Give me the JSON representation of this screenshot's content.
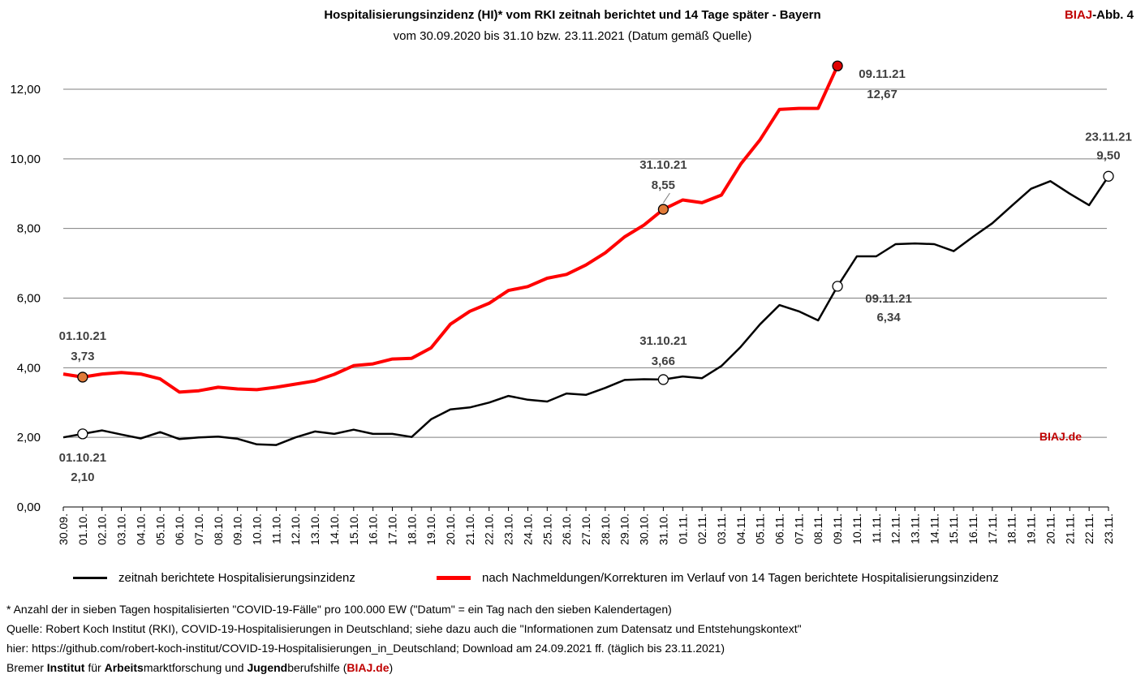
{
  "header": {
    "title": "Hospitalisierungsinzidenz (HI)* vom RKI zeitnah berichtet und 14 Tage später - Bayern",
    "subtitle": "vom 30.09.2020 bis 31.10 bzw. 23.11.2021 (Datum gemäß Quelle)",
    "fig_label_red": "BIAJ",
    "fig_label_rest": "-Abb. 4"
  },
  "colors": {
    "black_series": "#000000",
    "red_series": "#ff0000",
    "gridline": "#7f7f7f",
    "brand_red": "#c00000",
    "marker_orange": "#e07b39",
    "marker_red": "#e00000"
  },
  "chart_data": {
    "type": "line",
    "ylim": [
      0,
      12
    ],
    "yticks": [
      "0,00",
      "2,00",
      "4,00",
      "6,00",
      "8,00",
      "10,00",
      "12,00"
    ],
    "ytick_values": [
      0,
      2,
      4,
      6,
      8,
      10,
      12
    ],
    "categories": [
      "30.09.",
      "01.10.",
      "02.10.",
      "03.10.",
      "04.10.",
      "05.10.",
      "06.10.",
      "07.10.",
      "08.10.",
      "09.10.",
      "10.10.",
      "11.10.",
      "12.10.",
      "13.10.",
      "14.10.",
      "15.10.",
      "16.10.",
      "17.10.",
      "18.10.",
      "19.10.",
      "20.10.",
      "21.10.",
      "22.10.",
      "23.10.",
      "24.10.",
      "25.10.",
      "26.10.",
      "27.10.",
      "28.10.",
      "29.10.",
      "30.10.",
      "31.10.",
      "01.11.",
      "02.11.",
      "03.11.",
      "04.11.",
      "05.11.",
      "06.11.",
      "07.11.",
      "08.11.",
      "09.11.",
      "10.11.",
      "11.11.",
      "12.11.",
      "13.11.",
      "14.11.",
      "15.11.",
      "16.11.",
      "17.11.",
      "18.11.",
      "19.11.",
      "20.11.",
      "21.11.",
      "22.11.",
      "23.11."
    ],
    "series": [
      {
        "name": "zeitnah berichtete Hospitalisierungsinzidenz",
        "color": "#000000",
        "values": [
          2.0,
          2.1,
          2.2,
          2.08,
          1.97,
          2.15,
          1.95,
          2.0,
          2.02,
          1.96,
          1.8,
          1.78,
          2.0,
          2.17,
          2.1,
          2.22,
          2.1,
          2.1,
          2.01,
          2.52,
          2.8,
          2.86,
          3.0,
          3.19,
          3.08,
          3.03,
          3.26,
          3.22,
          3.42,
          3.65,
          3.67,
          3.66,
          3.75,
          3.7,
          4.05,
          4.6,
          5.25,
          5.8,
          5.62,
          5.36,
          6.34,
          7.2,
          7.2,
          7.55,
          7.57,
          7.55,
          7.35,
          7.76,
          8.15,
          8.65,
          9.14,
          9.36,
          9.0,
          8.67,
          9.5
        ]
      },
      {
        "name": "nach Nachmeldungen/Korrekturen im Verlauf von 14 Tagen berichtete Hospitalisierungsinzidenz",
        "color": "#ff0000",
        "values": [
          3.82,
          3.73,
          3.82,
          3.86,
          3.82,
          3.68,
          3.3,
          3.34,
          3.44,
          3.39,
          3.37,
          3.44,
          3.53,
          3.62,
          3.81,
          4.06,
          4.11,
          4.25,
          4.27,
          4.57,
          5.25,
          5.62,
          5.85,
          6.22,
          6.33,
          6.57,
          6.68,
          6.95,
          7.3,
          7.76,
          8.1,
          8.55,
          8.82,
          8.74,
          8.96,
          9.85,
          10.55,
          11.42,
          11.45,
          11.45,
          12.67,
          null,
          null,
          null,
          null,
          null,
          null,
          null,
          null,
          null,
          null,
          null,
          null,
          null,
          null
        ]
      }
    ],
    "annotations": [
      {
        "series": 1,
        "index": 1,
        "date": "01.10.21",
        "value": "3,73",
        "marker": "orange"
      },
      {
        "series": 1,
        "index": 31,
        "date": "31.10.21",
        "value": "8,55",
        "marker": "orange"
      },
      {
        "series": 1,
        "index": 40,
        "date": "09.11.21",
        "value": "12,67",
        "marker": "red"
      },
      {
        "series": 0,
        "index": 1,
        "date": "01.10.21",
        "value": "2,10",
        "marker": "white"
      },
      {
        "series": 0,
        "index": 31,
        "date": "31.10.21",
        "value": "3,66",
        "marker": "white"
      },
      {
        "series": 0,
        "index": 40,
        "date": "09.11.21",
        "value": "6,34",
        "marker": "white"
      },
      {
        "series": 0,
        "index": 54,
        "date": "23.11.21",
        "value": "9,50",
        "marker": "white"
      }
    ],
    "watermark": "BIAJ.de",
    "grid": true,
    "legend": "bottom"
  },
  "notes": {
    "footnote": "* Anzahl der in sieben Tagen hospitalisierten \"COVID-19-Fälle\" pro 100.000 EW (\"Datum\" = ein Tag nach den sieben Kalendertagen)",
    "source": "Quelle: Robert Koch Institut (RKI), COVID-19-Hospitalisierungen in Deutschland; siehe dazu auch die \"Informationen zum Datensatz und Entstehungskontext\"",
    "link": "hier: https://github.com/robert-koch-institut/COVID-19-Hospitalisierungen_in_Deutschland; Download am 24.09.2021 ff. (täglich bis 23.11.2021)",
    "org": {
      "w1": "Bremer ",
      "w2": "Institut",
      "w3": " für ",
      "w4": "Arbeits",
      "w5": "marktforschung und ",
      "w6": "Jugend",
      "w7": "berufshilfe (",
      "w8": "BIAJ.de",
      "w9": ")"
    }
  }
}
